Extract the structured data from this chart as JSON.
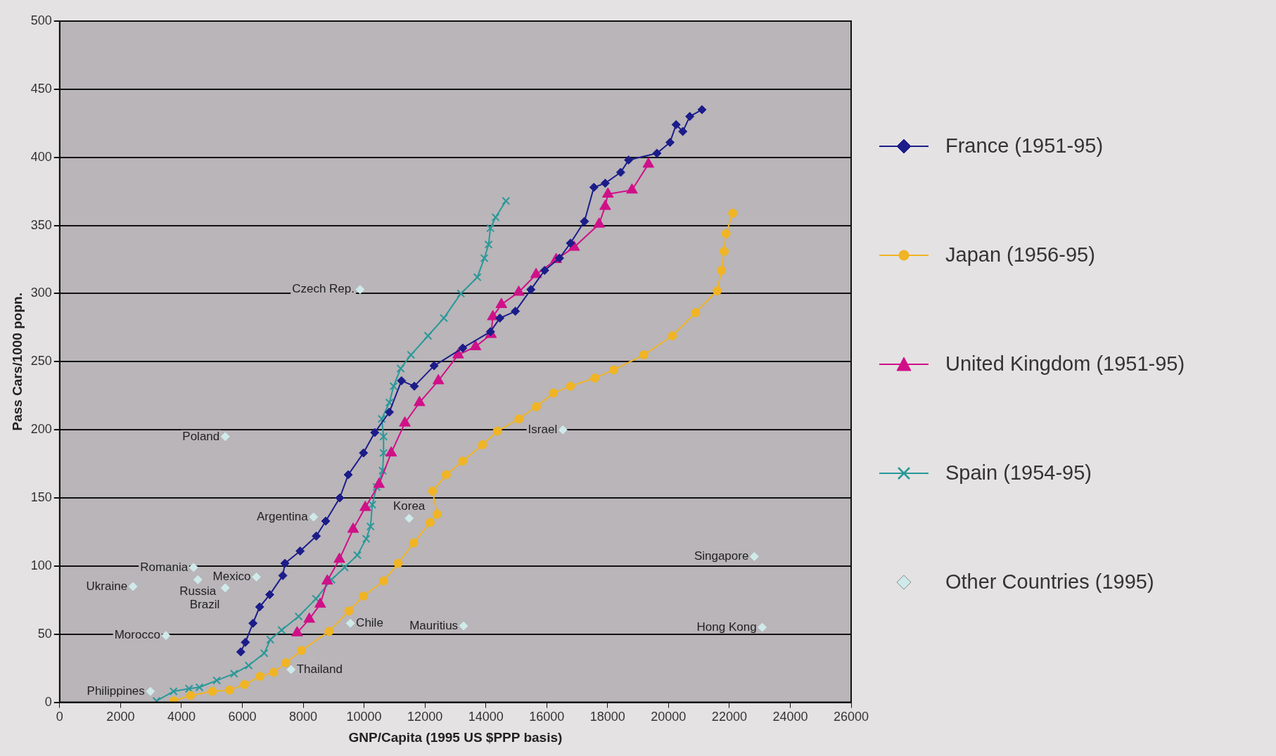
{
  "chart_data": {
    "type": "line",
    "xlabel": "GNP/Capita (1995 US $PPP basis)",
    "ylabel": "Pass Cars/1000 popn.",
    "xlim": [
      0,
      26000
    ],
    "xticks": [
      0,
      2000,
      4000,
      6000,
      8000,
      10000,
      12000,
      14000,
      16000,
      18000,
      20000,
      22000,
      24000,
      26000
    ],
    "ylim": [
      0,
      500
    ],
    "yticks": [
      0,
      50,
      100,
      150,
      200,
      250,
      300,
      350,
      400,
      450,
      500
    ],
    "grid": "y",
    "legend": "right",
    "series": [
      {
        "name": "France (1951-95)",
        "color": "#1c1c8a",
        "marker": "diamond",
        "x": [
          5950,
          6100,
          6350,
          6570,
          6900,
          7330,
          7400,
          7900,
          8430,
          8740,
          9200,
          9480,
          9980,
          10350,
          10830,
          11230,
          11650,
          12300,
          13240,
          14150,
          14460,
          14970,
          15480,
          15930,
          16420,
          16780,
          17240,
          17550,
          17920,
          18430,
          18690,
          19620,
          20050,
          20250,
          20470,
          20700,
          21100
        ],
        "values": [
          37,
          44,
          58,
          70,
          79,
          93,
          102,
          111,
          122,
          133,
          150,
          167,
          183,
          198,
          213,
          236,
          232,
          247,
          260,
          272,
          282,
          287,
          303,
          317,
          326,
          337,
          353,
          378,
          381,
          389,
          398,
          403,
          411,
          424,
          419,
          430,
          435
        ]
      },
      {
        "name": "Japan (1956-95)",
        "color": "#f0b424",
        "marker": "circle",
        "x": [
          3750,
          4300,
          5020,
          5580,
          6070,
          6580,
          7030,
          7430,
          7940,
          8850,
          9500,
          9980,
          10640,
          11120,
          11630,
          12170,
          12400,
          12250,
          12700,
          13240,
          13890,
          14380,
          15090,
          15660,
          16220,
          16780,
          17580,
          18200,
          19190,
          20130,
          20890,
          21600,
          21740,
          21830,
          21890,
          22110
        ],
        "values": [
          1,
          5,
          8,
          9,
          13,
          19,
          22,
          29,
          38,
          52,
          67,
          78,
          89,
          102,
          117,
          132,
          138,
          155,
          167,
          177,
          189,
          199,
          208,
          217,
          227,
          232,
          238,
          244,
          255,
          269,
          286,
          302,
          317,
          331,
          344,
          359
        ]
      },
      {
        "name": "United Kingdom (1951-95)",
        "color": "#d01088",
        "marker": "triangle",
        "x": [
          7800,
          8200,
          8560,
          8790,
          9190,
          9640,
          10040,
          10490,
          10890,
          11340,
          11820,
          12440,
          13090,
          13660,
          14170,
          14230,
          14510,
          15080,
          15650,
          16310,
          16900,
          17720,
          17920,
          18010,
          18800,
          19340
        ],
        "values": [
          51,
          61,
          72,
          89,
          105,
          127,
          143,
          160,
          183,
          205,
          220,
          236,
          255,
          261,
          270,
          283,
          292,
          301,
          314,
          325,
          334,
          351,
          364,
          373,
          376,
          395
        ]
      },
      {
        "name": "Spain (1954-95)",
        "color": "#2a9898",
        "marker": "cross",
        "x": [
          3180,
          3740,
          4250,
          4590,
          5160,
          5730,
          6210,
          6720,
          6920,
          7290,
          7850,
          8420,
          8930,
          9360,
          9780,
          10070,
          10210,
          10270,
          10410,
          10610,
          10640,
          10640,
          10580,
          10830,
          10970,
          11200,
          11540,
          12100,
          12620,
          13180,
          13720,
          13950,
          14090,
          14150,
          14320,
          14660
        ],
        "values": [
          1,
          8,
          10,
          11,
          16,
          21,
          27,
          36,
          46,
          53,
          63,
          76,
          90,
          99,
          108,
          120,
          129,
          145,
          158,
          170,
          183,
          195,
          208,
          220,
          232,
          245,
          255,
          269,
          282,
          300,
          312,
          326,
          336,
          348,
          356,
          368
        ]
      },
      {
        "name": "Other Countries (1995)",
        "type": "scatter",
        "color": "#cfeaea",
        "marker": "diamond",
        "x": [
          9870,
          5440,
          8340,
          11480,
          4400,
          4540,
          2410,
          6460,
          5440,
          3490,
          2980,
          7600,
          9550,
          13270,
          16530,
          22820,
          23080
        ],
        "values": [
          303,
          195,
          136,
          135,
          99,
          90,
          85,
          92,
          84,
          49,
          8,
          24,
          58,
          56,
          200,
          107,
          55
        ]
      }
    ],
    "annotations": [
      {
        "text": "Czech Rep.",
        "x": 9870,
        "y": 303
      },
      {
        "text": "Poland",
        "x": 5440,
        "y": 195
      },
      {
        "text": "Argentina",
        "x": 8340,
        "y": 136
      },
      {
        "text": "Korea",
        "x": 11480,
        "y": 135
      },
      {
        "text": "Romania",
        "x": 4400,
        "y": 99
      },
      {
        "text": "Russia",
        "x": 4540,
        "y": 90
      },
      {
        "text": "Ukraine",
        "x": 2410,
        "y": 85
      },
      {
        "text": "Mexico",
        "x": 6460,
        "y": 92
      },
      {
        "text": "Brazil",
        "x": 5440,
        "y": 84
      },
      {
        "text": "Morocco",
        "x": 3490,
        "y": 49
      },
      {
        "text": "Philippines",
        "x": 2980,
        "y": 8
      },
      {
        "text": "Thailand",
        "x": 7600,
        "y": 24
      },
      {
        "text": "Chile",
        "x": 9550,
        "y": 58
      },
      {
        "text": "Mauritius",
        "x": 13270,
        "y": 56
      },
      {
        "text": "Israel",
        "x": 16530,
        "y": 200
      },
      {
        "text": "Singapore",
        "x": 22820,
        "y": 107
      },
      {
        "text": "Hong Kong",
        "x": 23080,
        "y": 55
      }
    ]
  }
}
